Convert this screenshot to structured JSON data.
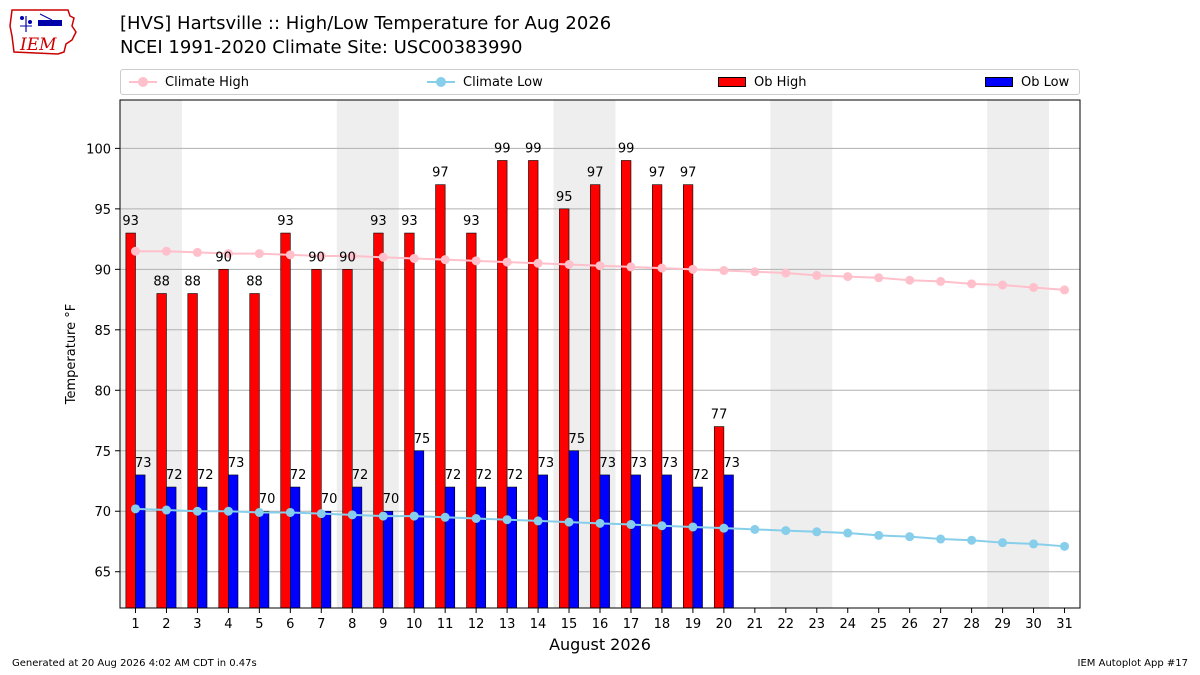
{
  "logo_text": "IEM",
  "title_line1": "[HVS] Hartsville :: High/Low Temperature for Aug 2026",
  "title_line2": "NCEI 1991-2020 Climate Site: USC00383990",
  "footer_left": "Generated at 20 Aug 2026 4:02 AM CDT in 0.47s",
  "footer_right": "IEM Autoplot App #17",
  "colors": {
    "ob_high": "#ff0000",
    "ob_low": "#0000ff",
    "climate_high": "#ffc0cb",
    "climate_low": "#87ceeb",
    "weekend_shade": "#eeeeee",
    "grid": "#b0b0b0"
  },
  "chart_data": {
    "type": "bar",
    "xlabel": "August 2026",
    "ylabel": "Temperature °F",
    "ylim": [
      62,
      104
    ],
    "xlim": [
      0.5,
      31.5
    ],
    "yticks": [
      65,
      70,
      75,
      80,
      85,
      90,
      95,
      100
    ],
    "grid": "horizontal",
    "legend_position": "top",
    "legend": [
      "Climate High",
      "Climate Low",
      "Ob High",
      "Ob Low"
    ],
    "shaded_day_spans": [
      [
        1,
        2
      ],
      [
        8,
        9
      ],
      [
        15,
        16
      ],
      [
        22,
        23
      ],
      [
        29,
        30
      ]
    ],
    "days": [
      1,
      2,
      3,
      4,
      5,
      6,
      7,
      8,
      9,
      10,
      11,
      12,
      13,
      14,
      15,
      16,
      17,
      18,
      19,
      20,
      21,
      22,
      23,
      24,
      25,
      26,
      27,
      28,
      29,
      30,
      31
    ],
    "series": [
      {
        "name": "Ob High",
        "kind": "bar",
        "values": [
          93,
          88,
          88,
          90,
          88,
          93,
          90,
          90,
          93,
          93,
          97,
          93,
          99,
          99,
          95,
          97,
          99,
          97,
          97,
          77
        ]
      },
      {
        "name": "Ob Low",
        "kind": "bar",
        "values": [
          73,
          72,
          72,
          73,
          70,
          72,
          70,
          72,
          70,
          75,
          72,
          72,
          72,
          73,
          75,
          73,
          73,
          73,
          72,
          73
        ]
      },
      {
        "name": "Climate High",
        "kind": "line",
        "values": [
          91.5,
          91.5,
          91.4,
          91.3,
          91.3,
          91.2,
          91.1,
          91.1,
          91.0,
          90.9,
          90.8,
          90.7,
          90.6,
          90.5,
          90.4,
          90.3,
          90.2,
          90.1,
          90.0,
          89.9,
          89.8,
          89.7,
          89.5,
          89.4,
          89.3,
          89.1,
          89.0,
          88.8,
          88.7,
          88.5,
          88.3
        ]
      },
      {
        "name": "Climate Low",
        "kind": "line",
        "values": [
          70.2,
          70.1,
          70.0,
          70.0,
          69.9,
          69.9,
          69.8,
          69.7,
          69.6,
          69.6,
          69.5,
          69.4,
          69.3,
          69.2,
          69.1,
          69.0,
          68.9,
          68.8,
          68.7,
          68.6,
          68.5,
          68.4,
          68.3,
          68.2,
          68.0,
          67.9,
          67.7,
          67.6,
          67.4,
          67.3,
          67.1
        ]
      }
    ]
  }
}
